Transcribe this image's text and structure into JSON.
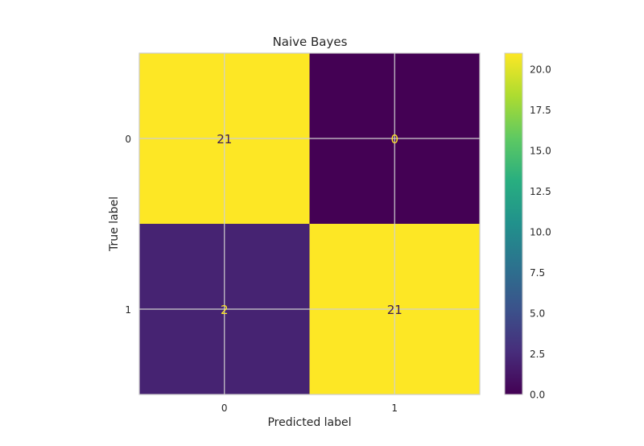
{
  "chart_data": {
    "type": "heatmap",
    "title": "Naive Bayes",
    "xlabel": "Predicted label",
    "ylabel": "True label",
    "x_categories": [
      "0",
      "1"
    ],
    "y_categories": [
      "0",
      "1"
    ],
    "matrix": [
      [
        21,
        0
      ],
      [
        2,
        21
      ]
    ],
    "cell_labels": [
      [
        "21",
        "0"
      ],
      [
        "2",
        "21"
      ]
    ],
    "colorbar": {
      "colormap": "viridis",
      "range": [
        0,
        21
      ],
      "ticks": [
        0,
        2.5,
        5,
        7.5,
        10,
        12.5,
        15,
        17.5,
        20
      ],
      "tick_labels": [
        "0.0",
        "2.5",
        "5.0",
        "7.5",
        "10.0",
        "12.5",
        "15.0",
        "17.5",
        "20.0"
      ]
    },
    "grid": true,
    "colors": {
      "low": "#440154",
      "high": "#fde725",
      "text_on_dark": "#fde725",
      "text_on_light": "#3b1b55",
      "grid": "#d0d0d0"
    }
  }
}
